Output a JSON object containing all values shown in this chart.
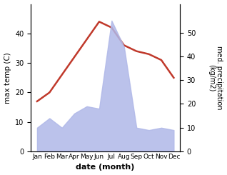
{
  "months": [
    "Jan",
    "Feb",
    "Mar",
    "Apr",
    "May",
    "Jun",
    "Jul",
    "Aug",
    "Sep",
    "Oct",
    "Nov",
    "Dec"
  ],
  "max_temp": [
    17,
    20,
    26,
    32,
    38,
    44,
    42,
    36,
    34,
    33,
    31,
    25
  ],
  "precipitation": [
    10,
    14,
    10,
    16,
    19,
    18,
    55,
    44,
    10,
    9,
    10,
    9
  ],
  "temp_ylim": [
    0,
    50
  ],
  "temp_yticks": [
    0,
    10,
    20,
    30,
    40
  ],
  "precip_ylim": [
    0,
    62
  ],
  "precip_yticks": [
    0,
    10,
    20,
    30,
    40,
    50
  ],
  "temp_color": "#c0392b",
  "precip_color": "#b0b8e8",
  "xlabel": "date (month)",
  "ylabel_left": "max temp (C)",
  "ylabel_right": "med. precipitation\n(kg/m2)",
  "bg_color": "#ffffff"
}
